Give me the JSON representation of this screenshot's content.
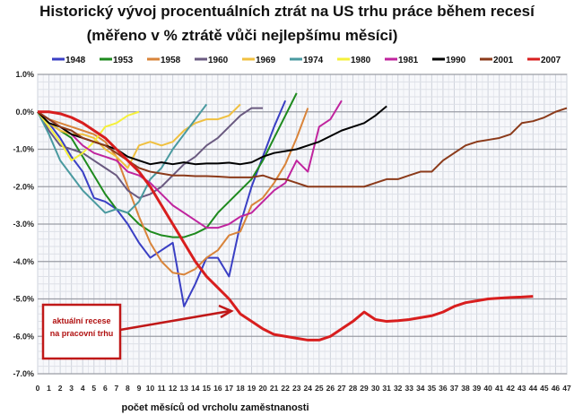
{
  "chart_data": {
    "type": "line",
    "title": "Historický vývoj procentuálních ztrát na US trhu práce během recesí",
    "subtitle": "(měřeno v % ztrátě vůči nejlepšímu měsíci)",
    "xlabel": "počet měsíců od vrcholu zaměstnanosti",
    "ylabel": "",
    "xlim": [
      0,
      47
    ],
    "ylim": [
      -7.0,
      1.0
    ],
    "y_ticks": [
      "1.0%",
      "0.0%",
      "-1.0%",
      "-2.0%",
      "-3.0%",
      "-4.0%",
      "-5.0%",
      "-6.0%",
      "-7.0%"
    ],
    "grid": true,
    "legend": "top",
    "annotation": {
      "text": [
        "aktuální recese",
        "na pracovní trhu"
      ],
      "target_series": "2007"
    },
    "series": [
      {
        "name": "1948",
        "color": "#3a3fc4",
        "values": [
          0,
          -0.3,
          -0.7,
          -1.2,
          -1.6,
          -2.3,
          -2.4,
          -2.6,
          -3.0,
          -3.5,
          -3.9,
          -3.7,
          -3.5,
          -5.2,
          -4.6,
          -3.9,
          -3.9,
          -4.4,
          -3.0,
          -2.0,
          -1.2,
          -0.4,
          0.3
        ]
      },
      {
        "name": "1953",
        "color": "#1e8a1e",
        "values": [
          0,
          -0.3,
          -0.5,
          -0.7,
          -1.2,
          -1.7,
          -2.2,
          -2.6,
          -2.7,
          -3.0,
          -3.2,
          -3.3,
          -3.35,
          -3.35,
          -3.25,
          -3.1,
          -2.7,
          -2.4,
          -2.1,
          -1.8,
          -1.3,
          -0.7,
          -0.1,
          0.5
        ]
      },
      {
        "name": "1958",
        "color": "#d9843a",
        "values": [
          0,
          -0.2,
          -0.3,
          -0.4,
          -0.5,
          -0.6,
          -0.8,
          -1.2,
          -2.0,
          -2.8,
          -3.5,
          -4.0,
          -4.3,
          -4.35,
          -4.2,
          -3.9,
          -3.7,
          -3.3,
          -3.2,
          -2.5,
          -2.3,
          -1.9,
          -1.4,
          -0.7,
          0.1
        ]
      },
      {
        "name": "1960",
        "color": "#6a5a80",
        "values": [
          0,
          -0.5,
          -0.9,
          -1.0,
          -1.1,
          -1.3,
          -1.5,
          -1.7,
          -2.1,
          -2.3,
          -2.2,
          -2.0,
          -1.7,
          -1.4,
          -1.2,
          -0.9,
          -0.7,
          -0.4,
          -0.1,
          0.1,
          0.1
        ]
      },
      {
        "name": "1969",
        "color": "#f0c040",
        "values": [
          0,
          -0.3,
          -0.5,
          -0.6,
          -0.6,
          -0.7,
          -1.0,
          -1.2,
          -1.5,
          -0.9,
          -0.8,
          -0.9,
          -0.8,
          -0.5,
          -0.3,
          -0.2,
          -0.2,
          -0.1,
          0.2
        ]
      },
      {
        "name": "1974",
        "color": "#4a9aa0",
        "values": [
          0,
          -0.6,
          -1.3,
          -1.7,
          -2.1,
          -2.4,
          -2.7,
          -2.6,
          -2.7,
          -2.4,
          -1.8,
          -1.5,
          -1.0,
          -0.6,
          -0.2,
          0.2
        ]
      },
      {
        "name": "1980",
        "color": "#f5f03a",
        "values": [
          0,
          -0.4,
          -0.8,
          -1.3,
          -1.1,
          -0.8,
          -0.4,
          -0.3,
          -0.1,
          0.0
        ]
      },
      {
        "name": "1981",
        "color": "#c0249e",
        "values": [
          0,
          -0.2,
          -0.4,
          -0.6,
          -0.9,
          -1.1,
          -1.2,
          -1.3,
          -1.6,
          -1.7,
          -1.9,
          -2.2,
          -2.5,
          -2.7,
          -2.9,
          -3.1,
          -3.1,
          -3.0,
          -2.8,
          -2.7,
          -2.4,
          -2.1,
          -1.9,
          -1.3,
          -1.6,
          -0.4,
          -0.2,
          0.3
        ]
      },
      {
        "name": "1990",
        "color": "#000000",
        "values": [
          0,
          -0.3,
          -0.4,
          -0.6,
          -0.7,
          -0.8,
          -0.9,
          -1.0,
          -1.2,
          -1.3,
          -1.4,
          -1.35,
          -1.4,
          -1.35,
          -1.4,
          -1.38,
          -1.38,
          -1.36,
          -1.4,
          -1.35,
          -1.2,
          -1.1,
          -1.05,
          -1.0,
          -0.9,
          -0.8,
          -0.65,
          -0.5,
          -0.4,
          -0.3,
          -0.1,
          0.15
        ]
      },
      {
        "name": "2001",
        "color": "#8b3a1a",
        "values": [
          0,
          -0.2,
          -0.4,
          -0.5,
          -0.7,
          -0.8,
          -0.9,
          -1.1,
          -1.3,
          -1.5,
          -1.6,
          -1.65,
          -1.7,
          -1.7,
          -1.72,
          -1.72,
          -1.73,
          -1.75,
          -1.75,
          -1.75,
          -1.7,
          -1.8,
          -1.8,
          -1.9,
          -2.0,
          -2.0,
          -2.0,
          -2.0,
          -2.0,
          -2.0,
          -1.9,
          -1.8,
          -1.8,
          -1.7,
          -1.6,
          -1.6,
          -1.3,
          -1.1,
          -0.9,
          -0.8,
          -0.75,
          -0.7,
          -0.6,
          -0.3,
          -0.25,
          -0.15,
          0.0,
          0.1
        ]
      },
      {
        "name": "2007",
        "color": "#d81e1e",
        "values": [
          0,
          0,
          -0.05,
          -0.15,
          -0.3,
          -0.5,
          -0.7,
          -1.0,
          -1.3,
          -1.6,
          -2.0,
          -2.5,
          -3.0,
          -3.5,
          -4.0,
          -4.4,
          -4.7,
          -5.0,
          -5.4,
          -5.6,
          -5.8,
          -5.95,
          -6.0,
          -6.05,
          -6.1,
          -6.1,
          -6.0,
          -5.8,
          -5.6,
          -5.35,
          -5.55,
          -5.6,
          -5.58,
          -5.55,
          -5.5,
          -5.45,
          -5.35,
          -5.2,
          -5.1,
          -5.05,
          -5.0,
          -4.98,
          -4.96,
          -4.95,
          -4.93
        ]
      }
    ]
  }
}
